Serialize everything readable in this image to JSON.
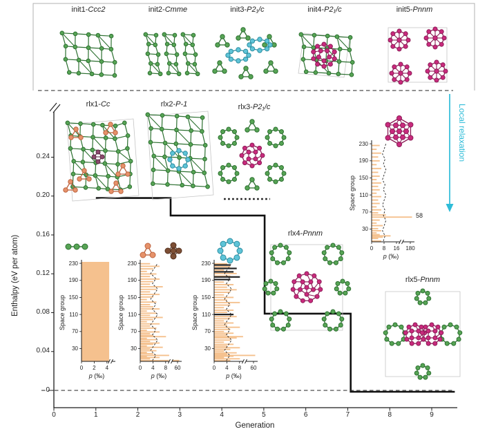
{
  "colors": {
    "green_atom": "#57a455",
    "green_bond": "#2c7030",
    "magenta_atom": "#c92a7d",
    "magenta_bond": "#8c1d57",
    "cyan_atom": "#5fc4d8",
    "cyan_bond": "#2b8da0",
    "orange_atom": "#e6926a",
    "orange_bond": "#bd6440",
    "brown_atom": "#7d4f35",
    "brown_bond": "#53301e",
    "purple_atom": "#8c4a6e",
    "purple_bond": "#5d2c47",
    "bar_fill": "#f5c18e",
    "accent_cyan": "#2ebcd8",
    "cell_line": "#c4c4c4",
    "axis": "#1a1a1a"
  },
  "top_panel": {
    "structures": [
      {
        "name": "init1",
        "label_prefix": "init1-",
        "space_group": "Ccc2"
      },
      {
        "name": "init2",
        "label_prefix": "init2-",
        "space_group": "Cmme"
      },
      {
        "name": "init3",
        "label_prefix": "init3-",
        "space_group": "P2₁/c"
      },
      {
        "name": "init4",
        "label_prefix": "init4-",
        "space_group": "P2₁/c"
      },
      {
        "name": "init5",
        "label_prefix": "init5-",
        "space_group": "Pnnm"
      }
    ]
  },
  "main_chart": {
    "y_axis_label": "Enthalpy (eV per atom)",
    "x_axis_label": "Generation",
    "y_tick_labels": [
      "0",
      "0.04",
      "0.08",
      "0.12",
      "0.16",
      "0.20",
      "0.24"
    ],
    "x_tick_labels": [
      "0",
      "1",
      "2",
      "3",
      "4",
      "5",
      "6",
      "7",
      "8",
      "9"
    ],
    "local_relaxation_label": "Local relaxation",
    "relaxed_structures": [
      {
        "name": "rlx1",
        "label_prefix": "rlx1-",
        "space_group": "Cc"
      },
      {
        "name": "rlx2",
        "label_prefix": "rlx2-",
        "space_group": "P-1"
      },
      {
        "name": "rlx3",
        "label_prefix": "rlx3-",
        "space_group": "P2₁/c"
      },
      {
        "name": "rlx4",
        "label_prefix": "rlx4-",
        "space_group": "Pnnm"
      },
      {
        "name": "rlx5",
        "label_prefix": "rlx5-",
        "space_group": "Pnnm"
      }
    ]
  },
  "chart_data": {
    "type": "line",
    "xlabel": "Generation",
    "ylabel": "Enthalpy (eV per atom)",
    "xlim": [
      0,
      9.6
    ],
    "ylim": [
      0,
      0.27
    ],
    "y_axis_break": true,
    "x_ticks": [
      0,
      1,
      2,
      3,
      4,
      5,
      6,
      7,
      8,
      9
    ],
    "y_ticks": [
      0,
      0.04,
      0.08,
      0.12,
      0.16,
      0.2,
      0.24
    ],
    "series": [
      {
        "name": "best-structure-enthalpy",
        "style": "step-solid",
        "points": [
          [
            1.0,
            0.198
          ],
          [
            2.78,
            0.198
          ],
          [
            2.78,
            0.18
          ],
          [
            5.02,
            0.18
          ],
          [
            5.02,
            0.079
          ],
          [
            7.07,
            0.079
          ],
          [
            7.07,
            0.0
          ],
          [
            9.55,
            0.0
          ]
        ]
      },
      {
        "name": "rlx3-enthalpy",
        "style": "dotted",
        "points": [
          [
            4.05,
            0.197
          ],
          [
            5.15,
            0.197
          ]
        ]
      },
      {
        "name": "zero-reference",
        "style": "dashed",
        "points": [
          [
            0,
            0
          ],
          [
            9.55,
            0
          ]
        ]
      }
    ],
    "annotations": [
      {
        "text": "58"
      }
    ],
    "insets": [
      {
        "name": "generation-1-space-group-histogram",
        "type": "bar",
        "orientation": "horizontal",
        "ylabel": "Space group",
        "xlabel": "p (‰)",
        "y_ticks": [
          30,
          70,
          110,
          150,
          190,
          230
        ],
        "x_ticks": [
          0,
          2,
          4
        ],
        "sg_range": [
          1,
          230
        ],
        "distribution": "uniform",
        "uniform_p": 4.3
      },
      {
        "name": "generation-2-space-group-histogram",
        "type": "bar",
        "orientation": "horizontal",
        "ylabel": "Space group",
        "xlabel": "p (‰)",
        "y_ticks": [
          30,
          70,
          110,
          150,
          190,
          230
        ],
        "x_ticks": [
          0,
          4,
          8
        ],
        "x_break_tick": 60,
        "ref_line_p": 4.3,
        "bars": [
          [
            2,
            60
          ],
          [
            6,
            3
          ],
          [
            9,
            6
          ],
          [
            12,
            2
          ],
          [
            14,
            9
          ],
          [
            18,
            4
          ],
          [
            21,
            2
          ],
          [
            25,
            5
          ],
          [
            29,
            3
          ],
          [
            33,
            7
          ],
          [
            36,
            2
          ],
          [
            40,
            4
          ],
          [
            43,
            6
          ],
          [
            47,
            3
          ],
          [
            51,
            5
          ],
          [
            54,
            2
          ],
          [
            58,
            8
          ],
          [
            61,
            4
          ],
          [
            65,
            3
          ],
          [
            69,
            6
          ],
          [
            73,
            2
          ],
          [
            78,
            5
          ],
          [
            83,
            3
          ],
          [
            88,
            6
          ],
          [
            93,
            2
          ],
          [
            98,
            4
          ],
          [
            103,
            7
          ],
          [
            108,
            3
          ],
          [
            113,
            5
          ],
          [
            118,
            2
          ],
          [
            123,
            6
          ],
          [
            128,
            4
          ],
          [
            133,
            3
          ],
          [
            139,
            5
          ],
          [
            145,
            2
          ],
          [
            151,
            4
          ],
          [
            157,
            6
          ],
          [
            163,
            3
          ],
          [
            169,
            5
          ],
          [
            175,
            7
          ],
          [
            181,
            3
          ],
          [
            187,
            4
          ],
          [
            193,
            6
          ],
          [
            199,
            3
          ],
          [
            205,
            5
          ],
          [
            211,
            2
          ],
          [
            217,
            4
          ],
          [
            223,
            6
          ],
          [
            229,
            3
          ]
        ]
      },
      {
        "name": "generation-4-space-group-histogram",
        "type": "bar",
        "orientation": "horizontal",
        "ylabel": "Space group",
        "xlabel": "p (‰)",
        "y_ticks": [
          30,
          70,
          110,
          150,
          190,
          230
        ],
        "x_ticks": [
          0,
          4,
          8
        ],
        "x_break_tick": 60,
        "ref_line_p": 4.3,
        "bars": [
          [
            2,
            5
          ],
          [
            6,
            8
          ],
          [
            9,
            3
          ],
          [
            12,
            6
          ],
          [
            14,
            60
          ],
          [
            17,
            4
          ],
          [
            20,
            7
          ],
          [
            24,
            3
          ],
          [
            28,
            5
          ],
          [
            32,
            8
          ],
          [
            36,
            4
          ],
          [
            40,
            6
          ],
          [
            45,
            3
          ],
          [
            50,
            5
          ],
          [
            55,
            7
          ],
          [
            58,
            9
          ],
          [
            62,
            4
          ],
          [
            66,
            6
          ],
          [
            70,
            3
          ],
          [
            75,
            5
          ],
          [
            80,
            8
          ],
          [
            85,
            4
          ],
          [
            90,
            6
          ],
          [
            95,
            3
          ],
          [
            100,
            5
          ],
          [
            105,
            7
          ],
          [
            115,
            4
          ],
          [
            120,
            6
          ],
          [
            126,
            3
          ],
          [
            132,
            5
          ],
          [
            138,
            8
          ],
          [
            144,
            4
          ],
          [
            150,
            6
          ],
          [
            156,
            3
          ],
          [
            162,
            5
          ],
          [
            168,
            7
          ],
          [
            174,
            4
          ],
          [
            180,
            6
          ],
          [
            186,
            3
          ],
          [
            200,
            5
          ],
          [
            206,
            7
          ],
          [
            214,
            3
          ],
          [
            222,
            5
          ],
          [
            229,
            4
          ]
        ],
        "black_bars": [
          [
            110,
            6
          ],
          [
            192,
            5
          ],
          [
            198,
            8
          ],
          [
            210,
            6
          ],
          [
            218,
            7
          ],
          [
            226,
            5
          ]
        ]
      },
      {
        "name": "generation-6-space-group-histogram",
        "type": "bar",
        "orientation": "horizontal",
        "ylabel": "Space group",
        "xlabel": "p (‰)",
        "y_ticks": [
          30,
          70,
          110,
          150,
          190,
          230
        ],
        "x_ticks": [
          0,
          8,
          16
        ],
        "x_break_tick": 180,
        "ref_line_p": 8,
        "dominant_space_group": 58,
        "bars": [
          [
            2,
            6
          ],
          [
            8,
            4
          ],
          [
            11,
            7
          ],
          [
            14,
            12
          ],
          [
            17,
            5
          ],
          [
            21,
            3
          ],
          [
            26,
            6
          ],
          [
            31,
            4
          ],
          [
            38,
            7
          ],
          [
            44,
            3
          ],
          [
            51,
            5
          ],
          [
            58,
            180
          ],
          [
            63,
            9
          ],
          [
            68,
            4
          ],
          [
            75,
            6
          ],
          [
            82,
            3
          ],
          [
            90,
            5
          ],
          [
            98,
            4
          ],
          [
            106,
            6
          ],
          [
            114,
            3
          ],
          [
            122,
            5
          ],
          [
            130,
            4
          ],
          [
            138,
            6
          ],
          [
            146,
            3
          ],
          [
            154,
            5
          ],
          [
            163,
            4
          ],
          [
            172,
            6
          ],
          [
            181,
            3
          ],
          [
            190,
            5
          ],
          [
            199,
            4
          ],
          [
            208,
            6
          ],
          [
            217,
            3
          ],
          [
            226,
            5
          ]
        ]
      }
    ]
  }
}
